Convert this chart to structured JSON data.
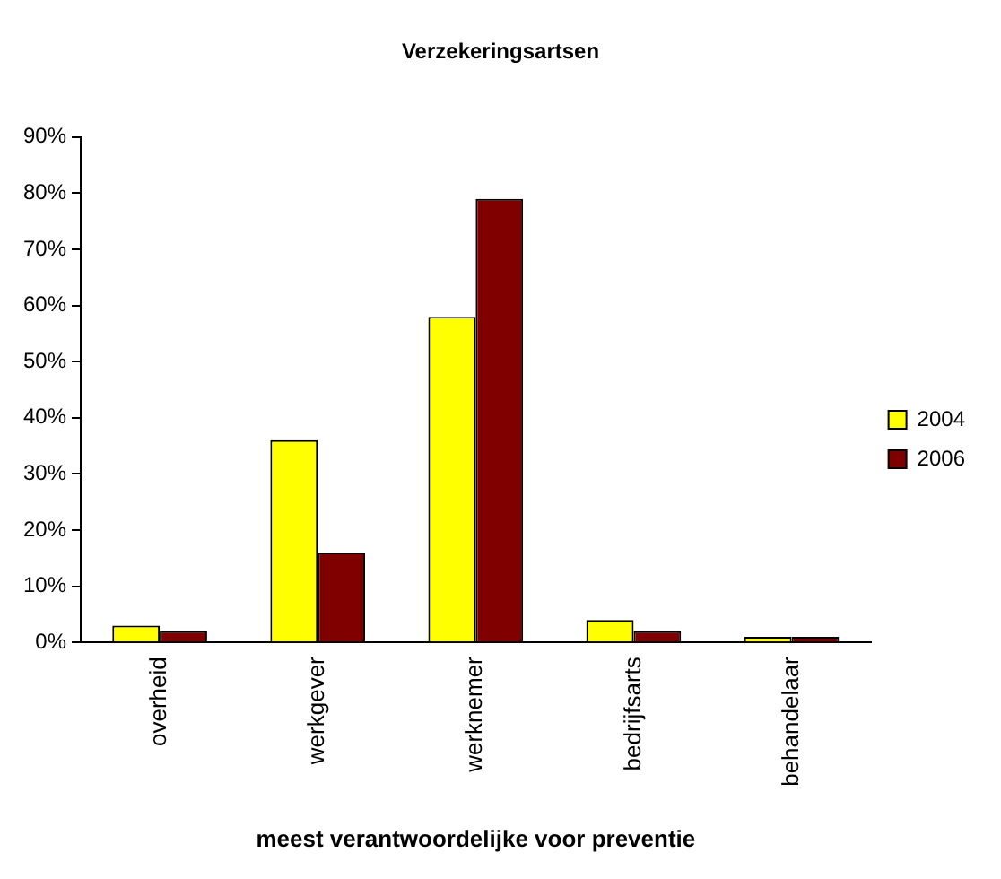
{
  "chart_data": {
    "type": "bar",
    "title": "Verzekeringsartsen",
    "xlabel": "meest verantwoordelijke voor preventie",
    "categories": [
      "overheid",
      "werkgever",
      "werknemer",
      "bedrijfsarts",
      "behandelaar"
    ],
    "series": [
      {
        "name": "2004",
        "color": "#ffff00",
        "values": [
          3,
          36,
          58,
          4,
          1
        ]
      },
      {
        "name": "2006",
        "color": "#800000",
        "values": [
          2,
          16,
          79,
          2,
          1
        ]
      }
    ],
    "ylim": [
      0,
      90
    ],
    "yticks": [
      {
        "value": 0,
        "label": "0%"
      },
      {
        "value": 10,
        "label": "10%"
      },
      {
        "value": 20,
        "label": "20%"
      },
      {
        "value": 30,
        "label": "30%"
      },
      {
        "value": 40,
        "label": "40%"
      },
      {
        "value": 50,
        "label": "50%"
      },
      {
        "value": 60,
        "label": "60%"
      },
      {
        "value": 70,
        "label": "70%"
      },
      {
        "value": 80,
        "label": "80%"
      },
      {
        "value": 90,
        "label": "90%"
      }
    ],
    "grid": false,
    "legend": "right"
  }
}
